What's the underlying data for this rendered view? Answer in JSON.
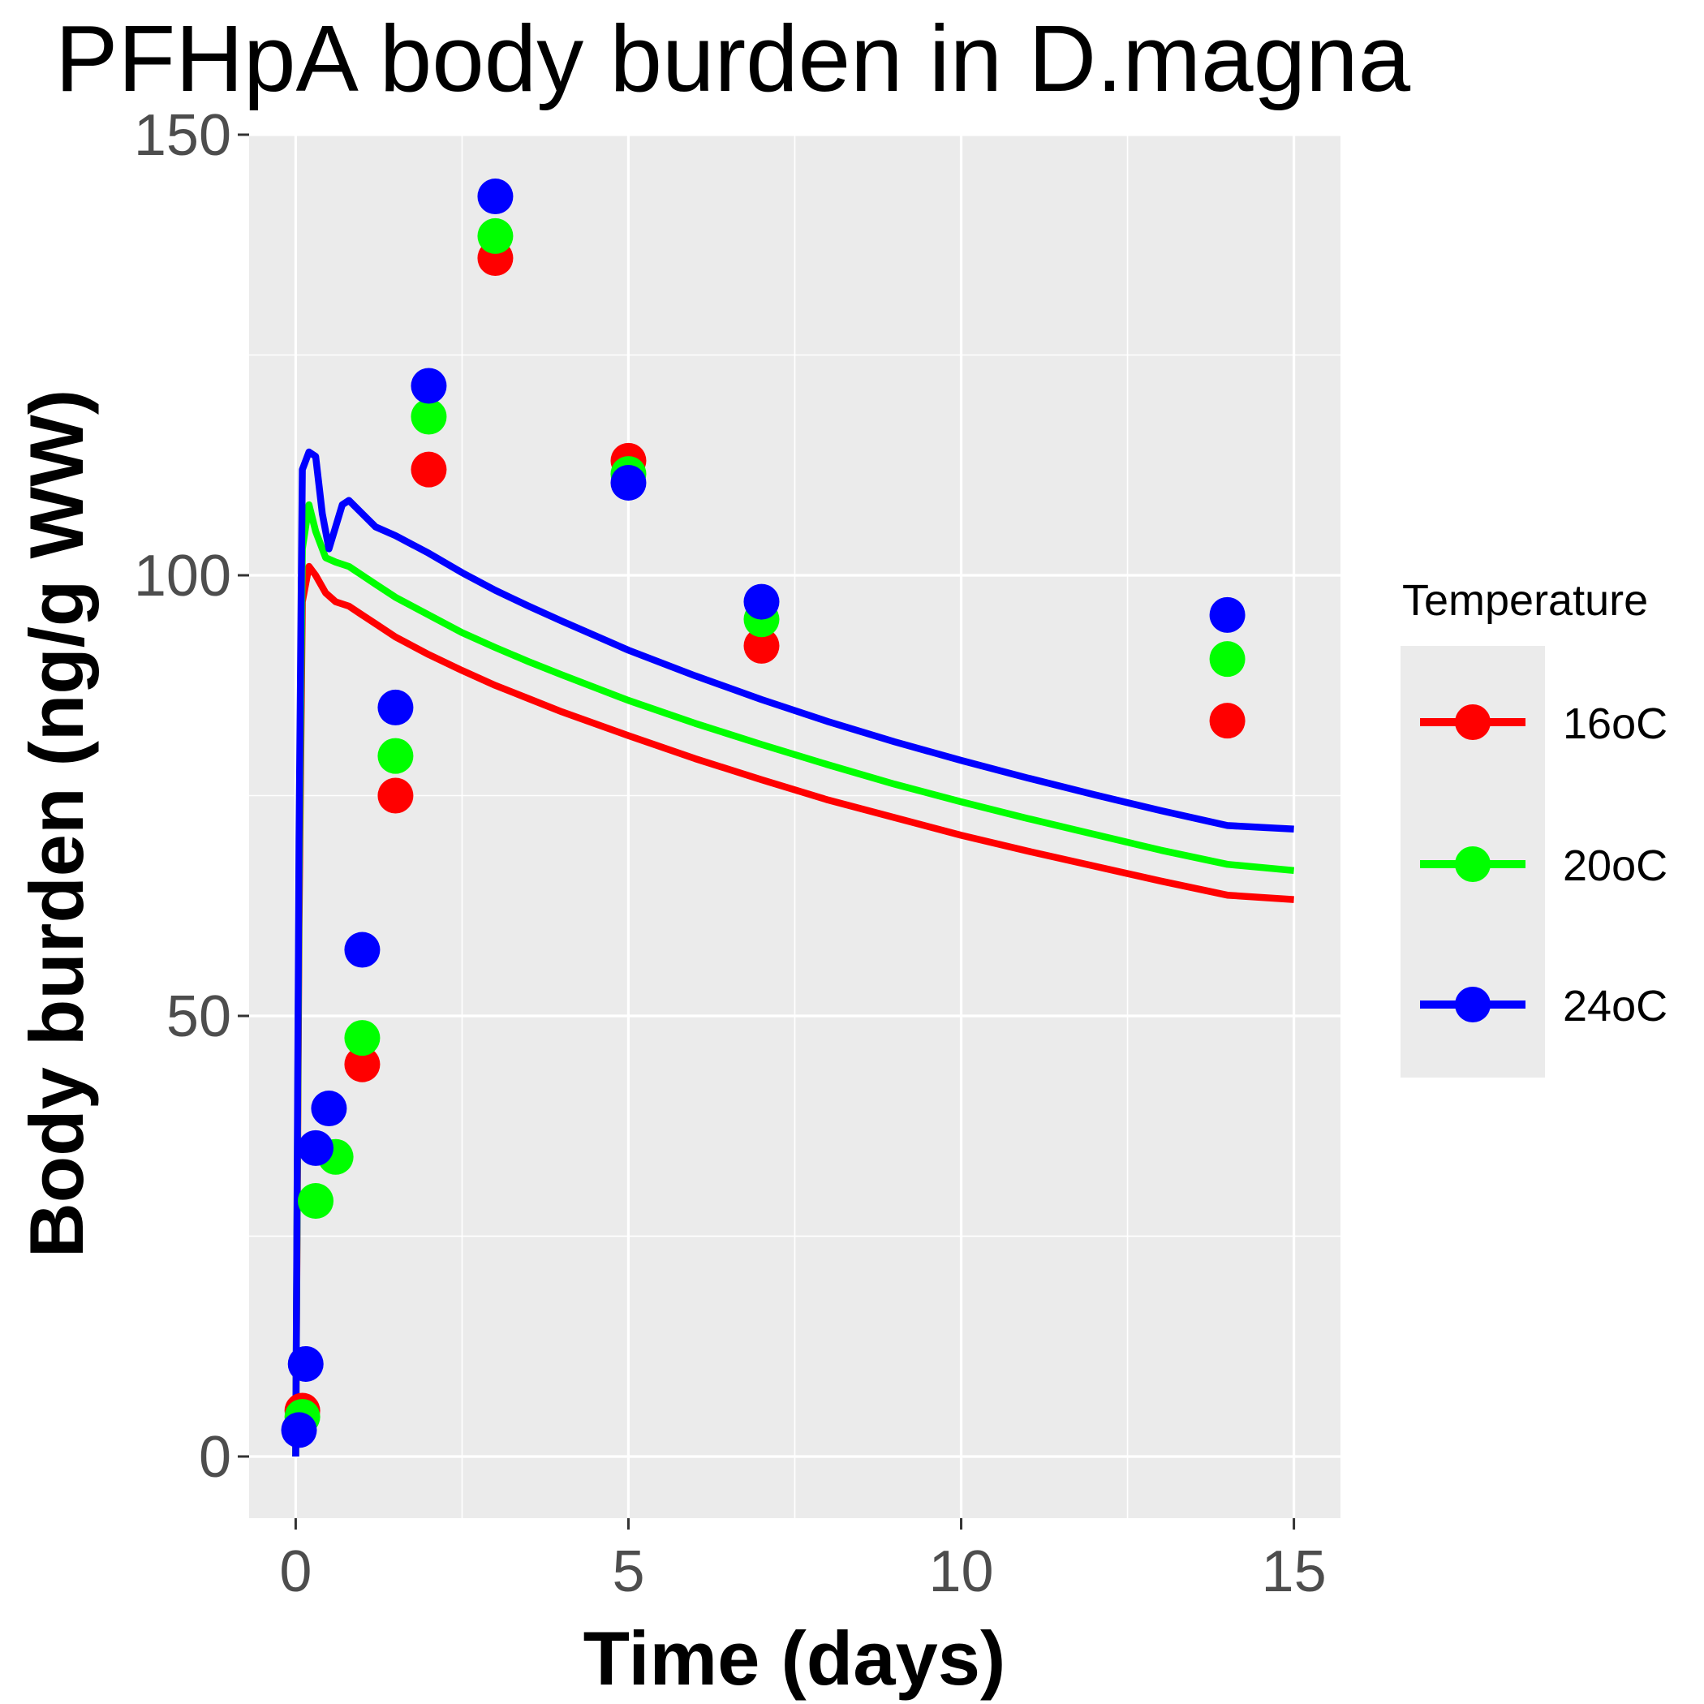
{
  "chart_data": {
    "type": "line",
    "title": "PFHpA body burden in D.magna",
    "xlabel": "Time (days)",
    "ylabel": "Body burden (ng/g WW)",
    "xlim": [
      -0.7,
      15.7
    ],
    "ylim": [
      -7,
      150
    ],
    "xticks": [
      0,
      5,
      10,
      15
    ],
    "yticks": [
      0,
      50,
      100,
      150
    ],
    "grid": true,
    "legend": {
      "title": "Temperature",
      "position": "right"
    },
    "series": [
      {
        "name": "16oC",
        "color": "#ff0000",
        "line": {
          "x": [
            0,
            0.05,
            0.1,
            0.2,
            0.3,
            0.45,
            0.6,
            0.8,
            1.0,
            1.2,
            1.5,
            2,
            2.5,
            3,
            3.5,
            4,
            5,
            6,
            7,
            8,
            9,
            10,
            11,
            12,
            13,
            14,
            15
          ],
          "y": [
            0,
            60,
            97,
            101,
            100,
            98,
            97,
            96.5,
            95.5,
            94.5,
            93,
            91,
            89.2,
            87.5,
            86,
            84.5,
            81.8,
            79.2,
            76.8,
            74.5,
            72.5,
            70.5,
            68.7,
            67.0,
            65.3,
            63.7,
            63.2
          ]
        },
        "points": {
          "x": [
            0.1,
            1.0,
            1.5,
            2.0,
            3.0,
            5.0,
            7.0,
            14.0
          ],
          "y": [
            5.2,
            44.5,
            75,
            112,
            136,
            113,
            92,
            83.5
          ]
        }
      },
      {
        "name": "20oC",
        "color": "#00ff00",
        "line": {
          "x": [
            0,
            0.05,
            0.1,
            0.2,
            0.3,
            0.45,
            0.6,
            0.8,
            1.0,
            1.2,
            1.5,
            2,
            2.5,
            3,
            3.5,
            4,
            5,
            6,
            7,
            8,
            9,
            10,
            11,
            12,
            13,
            14,
            15
          ],
          "y": [
            0,
            65,
            103,
            108,
            105,
            102,
            101.5,
            101,
            100,
            99,
            97.5,
            95.5,
            93.5,
            91.8,
            90.2,
            88.7,
            85.8,
            83.2,
            80.8,
            78.5,
            76.3,
            74.3,
            72.4,
            70.6,
            68.8,
            67.2,
            66.5
          ]
        },
        "points": {
          "x": [
            0.1,
            0.3,
            0.6,
            1.0,
            1.5,
            2.0,
            3.0,
            5.0,
            7.0,
            14.0
          ],
          "y": [
            4.5,
            29,
            34,
            47.5,
            79.5,
            118,
            138.5,
            111.5,
            95,
            90.5
          ]
        }
      },
      {
        "name": "24oC",
        "color": "#0000ff",
        "line": {
          "x": [
            0,
            0.05,
            0.1,
            0.2,
            0.3,
            0.4,
            0.5,
            0.6,
            0.7,
            0.8,
            1.0,
            1.2,
            1.5,
            2,
            2.5,
            3,
            3.5,
            4,
            5,
            6,
            7,
            8,
            9,
            10,
            11,
            12,
            13,
            14,
            15
          ],
          "y": [
            0,
            70,
            112,
            114,
            113.5,
            107,
            103,
            105.5,
            108,
            108.5,
            107,
            105.5,
            104.5,
            102.5,
            100.3,
            98.3,
            96.5,
            94.8,
            91.5,
            88.6,
            85.9,
            83.4,
            81.1,
            79.0,
            77.0,
            75.1,
            73.3,
            71.6,
            71.2
          ]
        },
        "points": {
          "x": [
            0.05,
            0.15,
            0.3,
            0.5,
            1.0,
            1.5,
            2.0,
            3.0,
            5.0,
            7.0,
            14.0
          ],
          "y": [
            3,
            10.5,
            35,
            39.5,
            57.5,
            85,
            121.5,
            143,
            110.5,
            97,
            95.5
          ]
        }
      }
    ]
  }
}
